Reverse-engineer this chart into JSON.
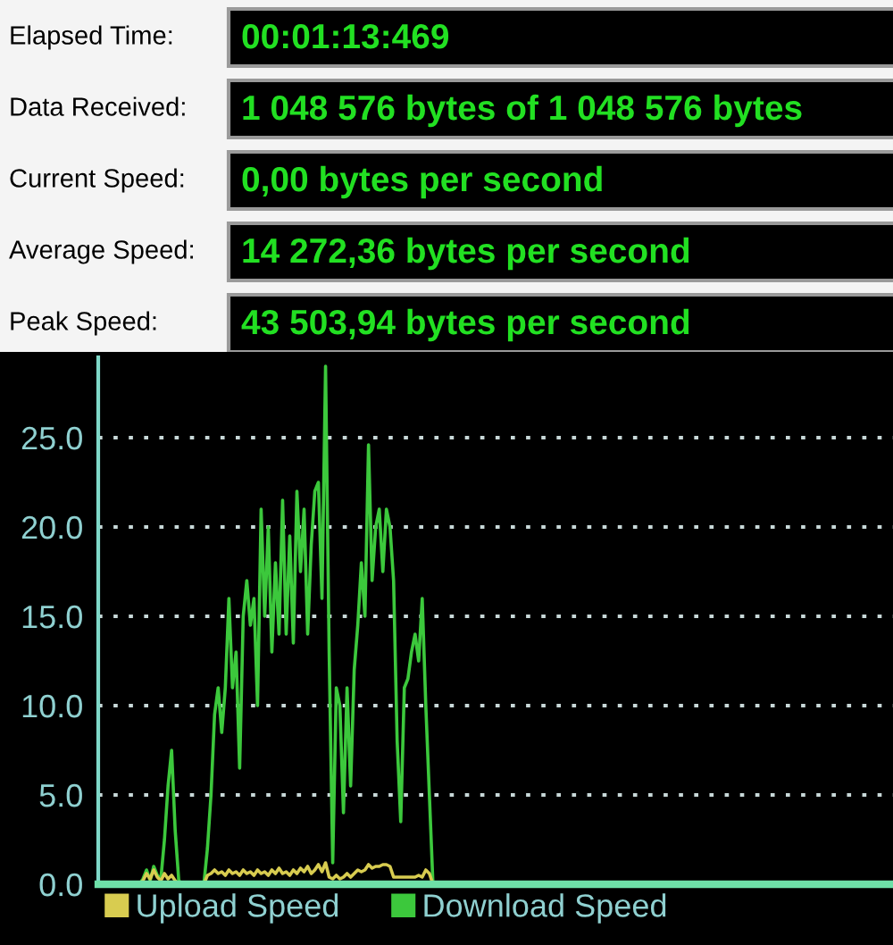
{
  "chart_data": [
    {
      "type": "other",
      "annotations": [
        "Elapsed Time:",
        "00:01:13:469",
        "Data Received:",
        "1 048 576 bytes of 1 048 576 bytes",
        "Current Speed:",
        "0,00 bytes per second",
        "Average Speed:",
        "14 272,36 bytes per second",
        "Peak Speed:",
        "43 503,94 bytes per second"
      ]
    },
    {
      "type": "line",
      "categories": [
        null,
        null,
        null,
        null,
        null,
        null,
        null,
        null,
        null,
        null,
        null,
        null,
        null,
        null,
        null,
        null,
        null,
        null,
        null,
        null,
        null,
        null,
        null,
        null,
        null,
        null,
        null,
        null,
        null,
        null,
        null,
        null,
        null,
        null,
        null,
        null,
        null,
        null,
        null,
        null,
        null,
        null,
        null,
        null,
        null,
        null,
        null,
        null,
        null,
        null,
        null,
        null,
        null,
        null,
        null,
        null,
        null,
        null,
        null,
        null,
        null,
        null,
        null,
        null,
        null,
        null,
        null,
        null,
        null,
        null,
        null,
        null,
        null,
        null,
        null,
        null,
        null,
        null,
        null,
        null,
        null,
        null,
        null,
        null,
        null,
        null,
        null,
        null,
        null,
        null,
        null,
        null,
        null,
        null,
        null,
        null,
        null,
        null,
        null,
        null,
        null,
        null,
        null,
        null,
        null,
        null,
        null,
        null,
        null,
        null,
        null,
        null,
        null,
        null,
        null,
        null,
        null,
        null,
        null,
        null,
        null,
        null,
        null,
        null,
        null,
        null,
        null,
        null,
        null,
        null,
        null,
        null,
        null,
        null,
        null,
        null,
        null,
        null,
        null,
        null,
        null,
        null,
        null,
        null,
        null,
        null,
        null,
        null,
        null,
        null,
        null,
        null,
        null,
        null,
        null,
        null,
        null,
        null,
        null,
        null,
        null,
        null,
        null,
        null,
        null,
        null,
        null,
        null,
        null,
        null,
        null,
        null,
        null,
        null,
        null,
        null,
        null,
        null,
        null,
        null,
        null,
        null,
        null,
        null,
        null,
        null,
        null,
        null,
        null,
        null,
        null,
        null,
        null,
        null,
        null,
        null,
        null,
        null,
        null,
        null,
        null,
        null,
        null,
        null,
        null,
        null,
        null,
        null,
        null,
        null,
        null,
        null,
        null,
        null,
        null,
        null,
        null,
        null,
        null,
        null,
        null,
        null
      ],
      "series": [
        {
          "name": "Upload Speed",
          "color": "#d8cc50",
          "values": [
            null,
            null,
            null,
            null,
            null,
            null,
            null,
            null,
            null,
            null,
            null,
            0,
            0.2,
            0.6,
            0.3,
            0.8,
            0.4,
            0.2,
            0.6,
            0.3,
            0.5,
            0.2,
            0,
            0,
            0,
            0,
            0,
            0,
            0,
            0,
            0.5,
            0.6,
            0.8,
            0.6,
            0.7,
            0.5,
            0.8,
            0.6,
            0.7,
            0.5,
            0.8,
            0.6,
            0.7,
            0.5,
            0.8,
            0.6,
            0.7,
            0.5,
            0.8,
            0.6,
            0.9,
            0.6,
            0.7,
            0.5,
            0.8,
            0.6,
            0.9,
            0.7,
            1.0,
            0.6,
            0.8,
            1.1,
            0.7,
            1.2,
            0.4,
            0.3,
            0.5,
            0.3,
            0.4,
            0.6,
            0.4,
            0.6,
            0.8,
            0.7,
            0.8,
            1.1,
            0.9,
            1.0,
            1.0,
            1.1,
            1.1,
            1.0,
            0.4,
            0.4,
            0.4,
            0.4,
            0.4,
            0.4,
            0.4,
            0.5,
            0.4,
            0.8,
            0.6,
            0,
            null,
            null,
            null,
            null,
            null,
            null,
            null,
            null,
            null,
            null,
            null,
            null,
            null,
            null,
            null,
            null,
            null,
            null,
            null,
            null,
            null,
            null,
            null,
            null,
            null,
            null,
            null,
            null,
            null,
            null,
            null,
            null,
            null,
            null,
            null,
            null,
            null,
            null,
            null,
            null,
            null,
            null,
            null,
            null,
            null,
            null,
            null,
            null,
            null,
            null,
            null,
            null,
            null,
            null,
            null,
            null,
            null,
            null,
            null,
            null,
            null,
            null,
            null,
            null,
            null,
            null,
            null,
            null,
            null,
            null,
            null,
            null,
            null,
            null,
            null,
            null,
            null,
            null,
            null,
            null,
            null,
            null,
            null,
            null,
            null,
            null,
            null,
            null,
            null,
            null,
            null,
            null,
            null,
            null,
            null,
            null,
            null,
            null,
            null,
            null,
            null,
            null,
            null,
            null,
            null,
            null,
            null,
            null,
            null,
            null,
            null,
            null,
            null,
            null,
            null,
            null,
            null,
            null,
            null,
            null,
            null,
            null,
            null,
            null,
            null,
            null,
            null,
            null
          ]
        },
        {
          "name": "Download Speed",
          "color": "#3cc83c",
          "values": [
            null,
            null,
            null,
            null,
            null,
            null,
            null,
            null,
            null,
            null,
            null,
            0,
            0.3,
            0.8,
            0.2,
            1.0,
            0.5,
            0.3,
            2.5,
            5.5,
            7.5,
            3.0,
            0.2,
            0,
            0,
            0,
            0,
            0,
            0,
            0,
            2.0,
            5.0,
            9.5,
            11,
            8.5,
            11,
            16,
            11,
            13,
            6.5,
            15,
            17,
            14.5,
            16,
            10,
            21,
            15,
            20,
            13,
            18,
            14,
            21.5,
            14,
            19.5,
            13.5,
            22,
            17.5,
            21,
            14,
            19,
            22,
            22.5,
            16,
            29,
            13,
            1.2,
            11,
            10,
            4,
            11,
            5.5,
            12,
            14.5,
            18,
            15,
            24.6,
            17,
            20,
            21,
            17.5,
            21,
            20,
            17,
            8,
            3.5,
            11,
            11.5,
            13,
            14,
            12.5,
            16,
            10,
            5,
            0,
            null,
            null,
            null,
            null,
            null,
            null,
            null,
            null,
            null,
            null,
            null,
            null,
            null,
            null,
            null,
            null,
            null,
            null,
            null,
            null,
            null,
            null,
            null,
            null,
            null,
            null,
            null,
            null,
            null,
            null,
            null,
            null,
            null,
            null,
            null,
            null,
            null,
            null,
            null,
            null,
            null,
            null,
            null,
            null,
            null,
            null,
            null,
            null,
            null,
            null,
            null,
            null,
            null,
            null,
            null,
            null,
            null,
            null,
            null,
            null,
            null,
            null,
            null,
            null,
            null,
            null,
            null,
            null,
            null,
            null,
            null,
            null,
            null,
            null,
            null,
            null,
            null,
            null,
            null,
            null,
            null,
            null,
            null,
            null,
            null,
            null,
            null,
            null,
            null,
            null,
            null,
            null,
            null,
            null,
            null,
            null,
            null,
            null,
            null,
            null,
            null,
            null,
            null,
            null,
            null,
            null,
            null,
            null,
            null,
            null,
            null,
            null,
            null,
            null,
            null,
            null,
            null,
            null,
            null,
            null,
            null,
            null,
            null,
            null,
            null,
            null,
            null,
            null
          ]
        }
      ],
      "ylim": [
        0,
        29.5
      ],
      "yticks": [
        {
          "value": 0,
          "label": "0.0"
        },
        {
          "value": 5,
          "label": "5.0"
        },
        {
          "value": 10,
          "label": "10.0"
        },
        {
          "value": 15,
          "label": "15.0"
        },
        {
          "value": 20,
          "label": "20.0"
        },
        {
          "value": 25,
          "label": "25.0"
        }
      ],
      "tick_labels": "y",
      "grid": "y",
      "legend": "bottom",
      "line_style": "solid"
    }
  ]
}
